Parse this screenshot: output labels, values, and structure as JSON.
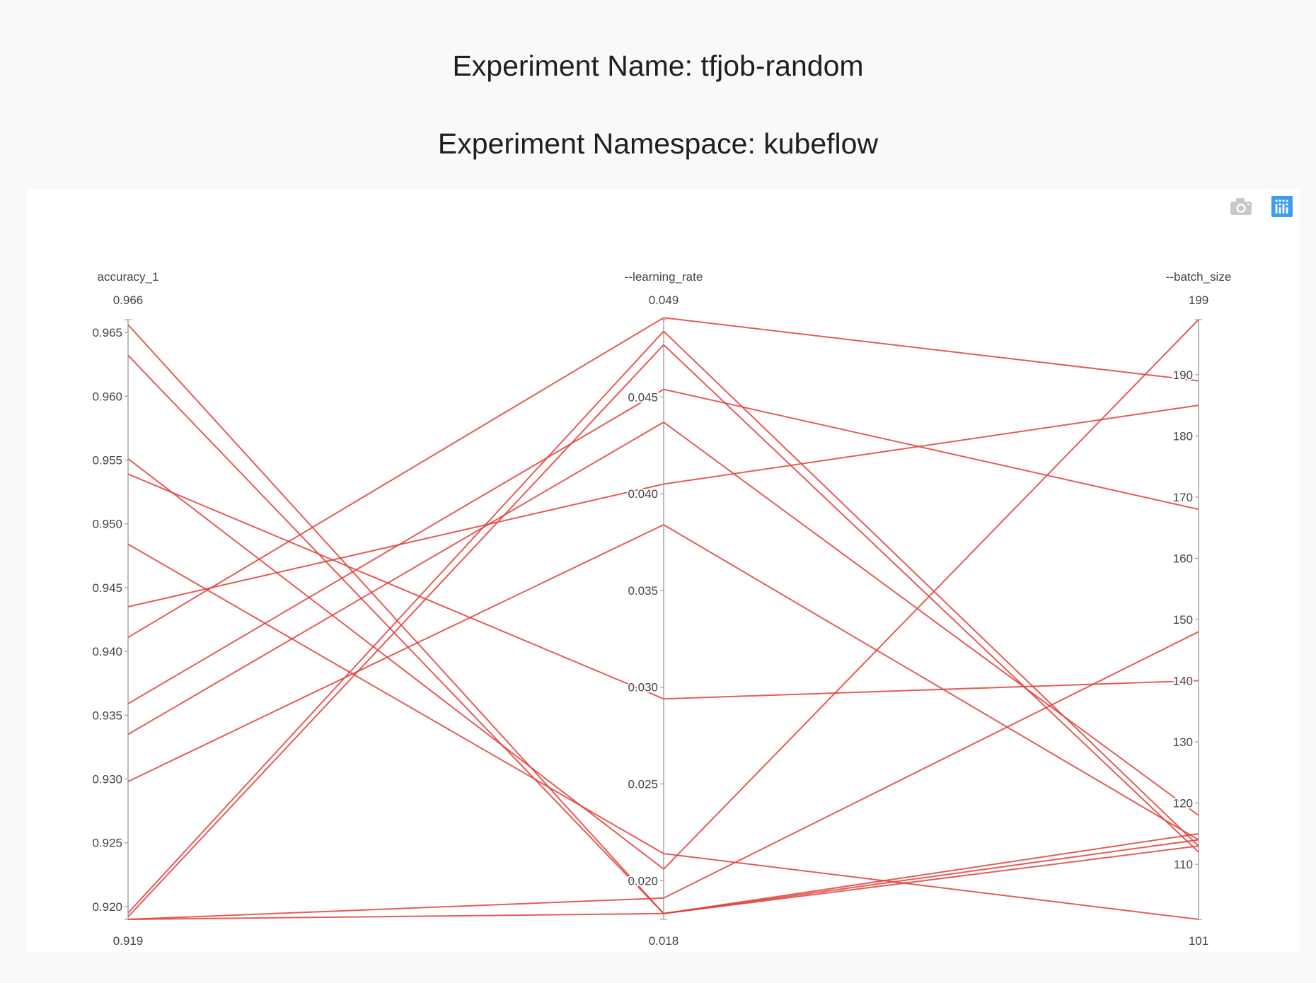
{
  "header": {
    "experiment_name": "Experiment Name: tfjob-random",
    "experiment_namespace": "Experiment Namespace: kubeflow"
  },
  "modebar": {
    "camera_icon": "camera-icon",
    "plotly_logo_icon": "plotly-logo-icon"
  },
  "colors": {
    "line": "#e0403a",
    "axis": "#8f8f8f",
    "tick_text": "#444444"
  },
  "chart_data": {
    "type": "parallel_coordinates",
    "dimensions": [
      {
        "label": "accuracy_1",
        "range": [
          0.919,
          0.966
        ],
        "range_labels": [
          "0.919",
          "0.966"
        ],
        "ticks": [
          0.92,
          0.925,
          0.93,
          0.935,
          0.94,
          0.945,
          0.95,
          0.955,
          0.96,
          0.965
        ],
        "tick_labels": [
          "0.920",
          "0.925",
          "0.930",
          "0.935",
          "0.940",
          "0.945",
          "0.950",
          "0.955",
          "0.960",
          "0.965"
        ]
      },
      {
        "label": "--learning_rate",
        "range": [
          0.018,
          0.049
        ],
        "range_labels": [
          "0.018",
          "0.049"
        ],
        "ticks": [
          0.02,
          0.025,
          0.03,
          0.035,
          0.04,
          0.045
        ],
        "tick_labels": [
          "0.020",
          "0.025",
          "0.030",
          "0.035",
          "0.040",
          "0.045"
        ]
      },
      {
        "label": "--batch_size",
        "range": [
          101,
          199
        ],
        "range_labels": [
          "101",
          "199"
        ],
        "ticks": [
          110,
          120,
          130,
          140,
          150,
          160,
          170,
          180,
          190
        ],
        "tick_labels": [
          "110",
          "120",
          "130",
          "140",
          "150",
          "160",
          "170",
          "180",
          "190"
        ]
      }
    ],
    "lines": [
      [
        0.9656,
        0.0183,
        113
      ],
      [
        0.9632,
        0.0183,
        115
      ],
      [
        0.9551,
        0.0206,
        199
      ],
      [
        0.9539,
        0.0294,
        140
      ],
      [
        0.9484,
        0.0214,
        101
      ],
      [
        0.9435,
        0.0405,
        185
      ],
      [
        0.9411,
        0.0491,
        189
      ],
      [
        0.9359,
        0.0454,
        168
      ],
      [
        0.9335,
        0.0437,
        118
      ],
      [
        0.9298,
        0.0384,
        114
      ],
      [
        0.9195,
        0.0484,
        113
      ],
      [
        0.9192,
        0.0477,
        112
      ],
      [
        0.919,
        0.0183,
        114
      ],
      [
        0.919,
        0.0191,
        148
      ]
    ]
  }
}
